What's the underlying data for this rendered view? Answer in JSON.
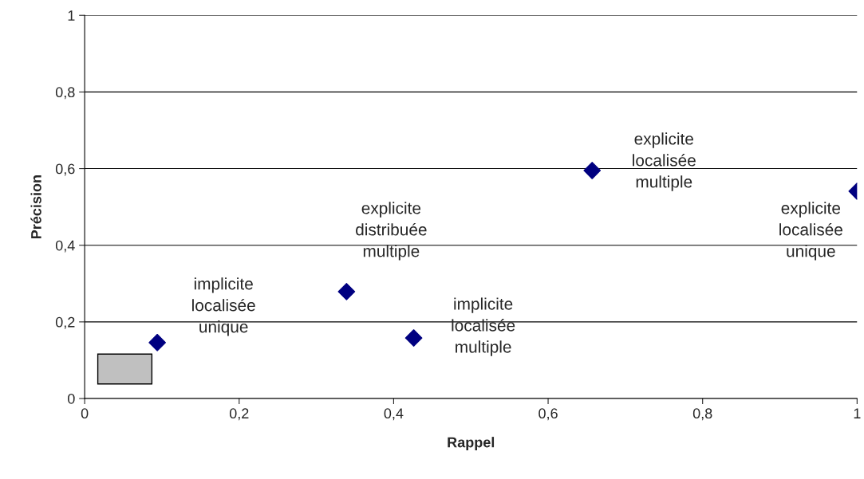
{
  "chart_data": {
    "type": "scatter",
    "xlabel": "Rappel",
    "ylabel": "Précision",
    "x": [
      0.094,
      0.339,
      0.426,
      0.657,
      1.0
    ],
    "series": [
      {
        "color": "#000080",
        "values": [
          0.146,
          0.279,
          0.158,
          0.595,
          0.541
        ]
      }
    ],
    "marker": "diamond",
    "grid": "y",
    "xlim": [
      0,
      1
    ],
    "ylim": [
      0,
      1
    ],
    "xticks": [
      0,
      {
        "value": 0.2,
        "label": "0,2"
      },
      {
        "value": 0.4,
        "label": "0,4"
      },
      {
        "value": 0.6,
        "label": "0,6"
      },
      {
        "value": 0.8,
        "label": "0,8"
      },
      1
    ],
    "yticks": [
      0,
      {
        "value": 0.2,
        "label": "0,2"
      },
      {
        "value": 0.4,
        "label": "0,4"
      },
      {
        "value": 0.6,
        "label": "0,6"
      },
      {
        "value": 0.8,
        "label": "0,8"
      },
      1
    ],
    "annotations": [
      "implicite\nlocalisée\nunique",
      "explicite\ndistribuée\nmultiple",
      "implicite\nlocalisée\nmultiple",
      "explicite\nlocalisée\nmultiple",
      "explicite\nlocalisée\nunique"
    ]
  }
}
